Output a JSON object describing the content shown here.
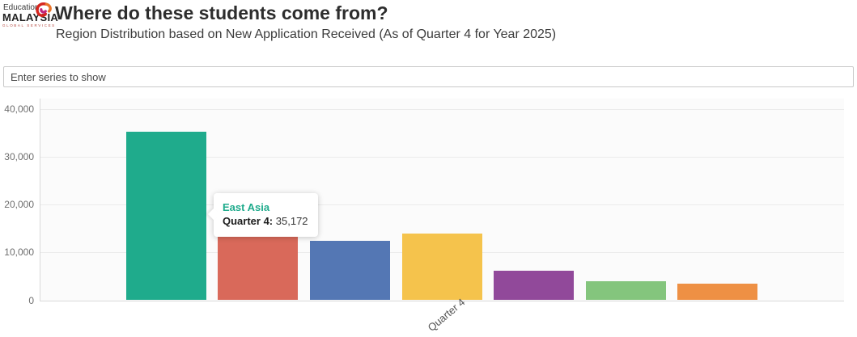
{
  "header": {
    "logo": {
      "line1": "Education",
      "line2": "MALAYSIA",
      "line3": "GLOBAL SERVICES"
    },
    "title": "Where do these students come from?",
    "subtitle": "Region Distribution based on New Application Received (As of Quarter 4 for Year 2025)"
  },
  "series_filter": {
    "placeholder": "Enter series to show"
  },
  "tooltip": {
    "series": "East Asia",
    "label": "Quarter 4:",
    "value": "35,172",
    "accent": "#1fab8c"
  },
  "chart_data": {
    "type": "bar",
    "title": "",
    "xlabel": "",
    "ylabel": "",
    "categories": [
      "Quarter 4"
    ],
    "series": [
      {
        "name": "East Asia",
        "values": [
          35172
        ],
        "color": "#1fab8c"
      },
      {
        "name": "",
        "values": [
          13300
        ],
        "color": "#d9695a"
      },
      {
        "name": "",
        "values": [
          12400
        ],
        "color": "#5477b4"
      },
      {
        "name": "",
        "values": [
          14000
        ],
        "color": "#f5c34c"
      },
      {
        "name": "",
        "values": [
          6200
        ],
        "color": "#91499a"
      },
      {
        "name": "",
        "values": [
          3900
        ],
        "color": "#84c57d"
      },
      {
        "name": "",
        "values": [
          3500
        ],
        "color": "#ee9044"
      }
    ],
    "ylim": [
      0,
      40000
    ],
    "yticks": [
      0,
      10000,
      20000,
      30000,
      40000
    ],
    "ytick_labels": [
      "0",
      "10,000",
      "20,000",
      "30,000",
      "40,000"
    ],
    "grid": true,
    "legend": "none",
    "tooltip_shown_for": "East Asia"
  }
}
